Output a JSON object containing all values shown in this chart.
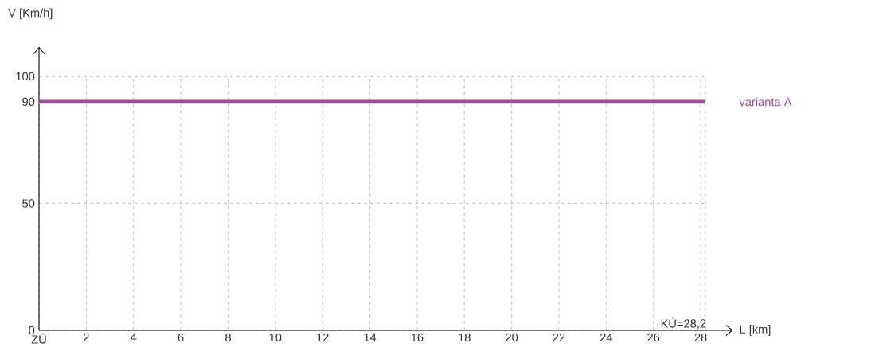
{
  "chart_data": {
    "type": "line",
    "xlabel": "L [km]",
    "ylabel": "V [Km/h]",
    "x": [
      0,
      28.2
    ],
    "series": [
      {
        "name": "varianta A",
        "color": "#9b4f9c",
        "values": [
          90,
          90
        ]
      }
    ],
    "xlim": [
      0,
      28.2
    ],
    "ylim": [
      0,
      100
    ],
    "xticks": [
      {
        "value": 0,
        "label": "ZÚ"
      },
      2,
      4,
      6,
      8,
      10,
      12,
      14,
      16,
      18,
      20,
      22,
      24,
      26,
      28
    ],
    "yticks": [
      0,
      50,
      90,
      100
    ],
    "grid": true,
    "annotations": [
      "KÚ=28,2"
    ]
  }
}
